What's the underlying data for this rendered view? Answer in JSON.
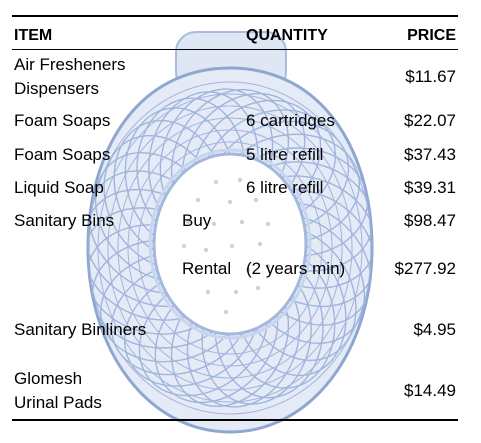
{
  "table": {
    "headers": {
      "item": "ITEM",
      "quantity": "QUANTITY",
      "price": "PRICE"
    },
    "rows": [
      {
        "item_line1": "Air Fresheners",
        "item_line2": "Dispensers",
        "price": "$11.67"
      },
      {
        "item": "Foam Soaps",
        "quantity": "6 cartridges",
        "price": "$22.07"
      },
      {
        "item": "Foam Soaps",
        "quantity": "5 litre refill",
        "price": "$37.43"
      },
      {
        "item": "Liquid Soap",
        "quantity": "6 litre refill",
        "price": "$39.31"
      },
      {
        "item": "Sanitary Bins",
        "option": "Buy",
        "price": "$98.47"
      },
      {
        "option": "Rental",
        "quantity": "(2 years min)",
        "price": "$277.92"
      },
      {
        "item": "Sanitary Binliners",
        "price": "$4.95"
      },
      {
        "item_line1": "Glomesh",
        "item_line2": "Urinal Pads",
        "price": "$14.49"
      }
    ]
  },
  "colors": {
    "text": "#000000",
    "illustration": "#b9c9e6",
    "illustration_dark": "#8fa6d1"
  },
  "icons": {
    "background": "urinal-pad-illustration"
  }
}
